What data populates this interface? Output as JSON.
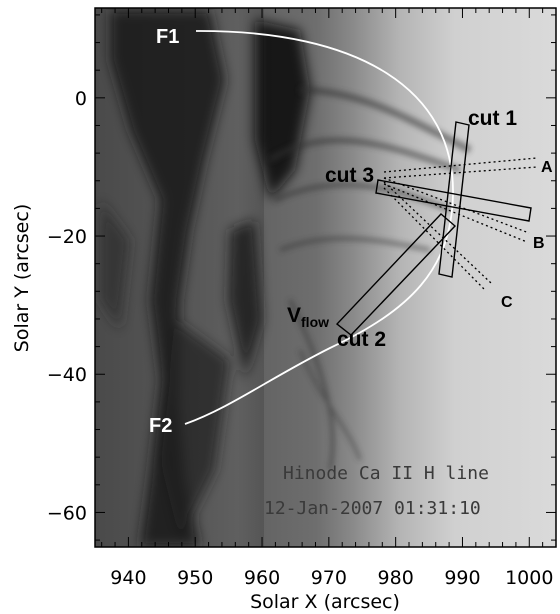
{
  "figure": {
    "caption_line1": "Hinode Ca II H line",
    "caption_line2": "12-Jan-2007 01:31:10",
    "label_F1": "F1",
    "label_F2": "F2",
    "label_cut1": "cut 1",
    "label_cut2": "cut 2",
    "label_cut3": "cut 3",
    "label_A": "A",
    "label_B": "B",
    "label_C": "C",
    "label_vflow_main": "V",
    "label_vflow_sub": "flow"
  },
  "chart_data": {
    "type": "heatmap",
    "title": "",
    "xlabel": "Solar X (arcsec)",
    "ylabel": "Solar Y (arcsec)",
    "xlim": [
      935,
      1004
    ],
    "ylim": [
      -65,
      13
    ],
    "x_ticks": [
      940,
      950,
      960,
      970,
      980,
      990,
      1000
    ],
    "y_ticks": [
      -60,
      -40,
      -20,
      0
    ],
    "x_tick_labels": [
      "940",
      "950",
      "960",
      "970",
      "980",
      "990",
      "1000"
    ],
    "y_tick_labels": [
      "−60",
      "−40",
      "−20",
      "0"
    ],
    "colormap": "grayscale (inverted)"
  }
}
